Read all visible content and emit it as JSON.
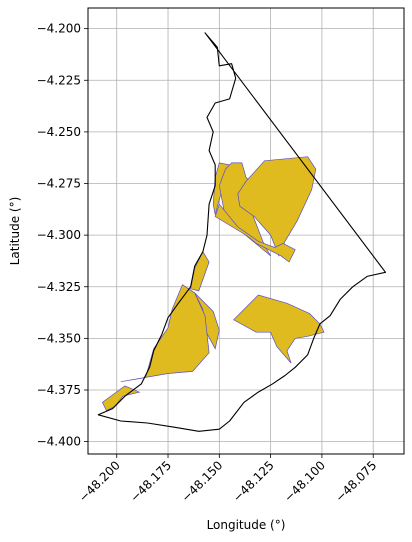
{
  "chart_data": {
    "type": "map",
    "xlabel": "Longitude (°)",
    "ylabel": "Latitude (°)",
    "xlim": [
      -48.214,
      -48.06
    ],
    "ylim": [
      -4.406,
      -4.19
    ],
    "grid": true,
    "x_ticks": [
      {
        "value": -48.2,
        "label": "−48.200"
      },
      {
        "value": -48.175,
        "label": "−48.175"
      },
      {
        "value": -48.15,
        "label": "−48.150"
      },
      {
        "value": -48.125,
        "label": "−48.125"
      },
      {
        "value": -48.1,
        "label": "−48.100"
      },
      {
        "value": -48.075,
        "label": "−48.075"
      }
    ],
    "y_ticks": [
      {
        "value": -4.2,
        "label": "−4.200"
      },
      {
        "value": -4.225,
        "label": "−4.225"
      },
      {
        "value": -4.25,
        "label": "−4.250"
      },
      {
        "value": -4.275,
        "label": "−4.275"
      },
      {
        "value": -4.3,
        "label": "−4.300"
      },
      {
        "value": -4.325,
        "label": "−4.325"
      },
      {
        "value": -4.35,
        "label": "−4.350"
      },
      {
        "value": -4.375,
        "label": "−4.375"
      },
      {
        "value": -4.4,
        "label": "−4.400"
      }
    ],
    "colors": {
      "boundary_stroke": "#000000",
      "parcel_fill": "#e0bb1f",
      "parcel_stroke": "#5a4fc4",
      "grid": "#b0b0b0"
    },
    "boundary": [
      [
        -48.157,
        -4.202
      ],
      [
        -48.151,
        -4.209
      ],
      [
        -48.15,
        -4.218
      ],
      [
        -48.144,
        -4.217
      ],
      [
        -48.142,
        -4.224
      ],
      [
        -48.145,
        -4.234
      ],
      [
        -48.152,
        -4.236
      ],
      [
        -48.156,
        -4.243
      ],
      [
        -48.153,
        -4.25
      ],
      [
        -48.155,
        -4.259
      ],
      [
        -48.152,
        -4.266
      ],
      [
        -48.152,
        -4.276
      ],
      [
        -48.155,
        -4.285
      ],
      [
        -48.156,
        -4.3
      ],
      [
        -48.158,
        -4.308
      ],
      [
        -48.162,
        -4.315
      ],
      [
        -48.164,
        -4.325
      ],
      [
        -48.17,
        -4.333
      ],
      [
        -48.175,
        -4.34
      ],
      [
        -48.178,
        -4.348
      ],
      [
        -48.182,
        -4.356
      ],
      [
        -48.184,
        -4.364
      ],
      [
        -48.188,
        -4.372
      ],
      [
        -48.196,
        -4.378
      ],
      [
        -48.202,
        -4.384
      ],
      [
        -48.209,
        -4.387
      ],
      [
        -48.198,
        -4.39
      ],
      [
        -48.185,
        -4.391
      ],
      [
        -48.172,
        -4.393
      ],
      [
        -48.16,
        -4.395
      ],
      [
        -48.15,
        -4.394
      ],
      [
        -48.145,
        -4.39
      ],
      [
        -48.138,
        -4.381
      ],
      [
        -48.131,
        -4.376
      ],
      [
        -48.124,
        -4.372
      ],
      [
        -48.118,
        -4.368
      ],
      [
        -48.113,
        -4.364
      ],
      [
        -48.107,
        -4.358
      ],
      [
        -48.104,
        -4.35
      ],
      [
        -48.101,
        -4.343
      ],
      [
        -48.096,
        -4.339
      ],
      [
        -48.091,
        -4.331
      ],
      [
        -48.085,
        -4.325
      ],
      [
        -48.078,
        -4.32
      ],
      [
        -48.069,
        -4.318
      ],
      [
        -48.157,
        -4.202
      ]
    ],
    "parcels": [
      [
        [
          -48.15,
          -4.265
        ],
        [
          -48.145,
          -4.266
        ],
        [
          -48.147,
          -4.272
        ],
        [
          -48.152,
          -4.29
        ],
        [
          -48.153,
          -4.285
        ],
        [
          -48.152,
          -4.272
        ]
      ],
      [
        [
          -48.144,
          -4.265
        ],
        [
          -48.139,
          -4.265
        ],
        [
          -48.137,
          -4.272
        ],
        [
          -48.131,
          -4.278
        ],
        [
          -48.135,
          -4.287
        ],
        [
          -48.128,
          -4.305
        ],
        [
          -48.125,
          -4.31
        ],
        [
          -48.147,
          -4.292
        ],
        [
          -48.15,
          -4.276
        ],
        [
          -48.147,
          -4.268
        ]
      ],
      [
        [
          -48.137,
          -4.274
        ],
        [
          -48.128,
          -4.264
        ],
        [
          -48.107,
          -4.262
        ],
        [
          -48.103,
          -4.268
        ],
        [
          -48.105,
          -4.278
        ],
        [
          -48.112,
          -4.293
        ],
        [
          -48.118,
          -4.303
        ],
        [
          -48.121,
          -4.31
        ],
        [
          -48.125,
          -4.3
        ],
        [
          -48.133,
          -4.291
        ],
        [
          -48.14,
          -4.286
        ],
        [
          -48.141,
          -4.28
        ]
      ],
      [
        [
          -48.15,
          -4.285
        ],
        [
          -48.152,
          -4.291
        ],
        [
          -48.137,
          -4.3
        ],
        [
          -48.132,
          -4.304
        ],
        [
          -48.12,
          -4.31
        ],
        [
          -48.116,
          -4.313
        ],
        [
          -48.113,
          -4.307
        ],
        [
          -48.119,
          -4.304
        ],
        [
          -48.123,
          -4.306
        ],
        [
          -48.131,
          -4.303
        ],
        [
          -48.141,
          -4.296
        ]
      ],
      [
        [
          -48.155,
          -4.313
        ],
        [
          -48.158,
          -4.308
        ],
        [
          -48.162,
          -4.316
        ],
        [
          -48.164,
          -4.326
        ],
        [
          -48.16,
          -4.327
        ]
      ],
      [
        [
          -48.162,
          -4.328
        ],
        [
          -48.158,
          -4.336
        ],
        [
          -48.158,
          -4.344
        ],
        [
          -48.152,
          -4.355
        ],
        [
          -48.15,
          -4.346
        ],
        [
          -48.153,
          -4.337
        ]
      ],
      [
        [
          -48.168,
          -4.324
        ],
        [
          -48.173,
          -4.336
        ],
        [
          -48.175,
          -4.345
        ],
        [
          -48.182,
          -4.355
        ],
        [
          -48.186,
          -4.369
        ],
        [
          -48.198,
          -4.371
        ],
        [
          -48.175,
          -4.367
        ],
        [
          -48.163,
          -4.366
        ],
        [
          -48.155,
          -4.357
        ],
        [
          -48.157,
          -4.339
        ],
        [
          -48.162,
          -4.328
        ]
      ],
      [
        [
          -48.197,
          -4.378
        ],
        [
          -48.201,
          -4.383
        ],
        [
          -48.205,
          -4.385
        ],
        [
          -48.207,
          -4.381
        ],
        [
          -48.196,
          -4.373
        ],
        [
          -48.189,
          -4.376
        ]
      ],
      [
        [
          -48.143,
          -4.341
        ],
        [
          -48.131,
          -4.329
        ],
        [
          -48.117,
          -4.333
        ],
        [
          -48.106,
          -4.338
        ],
        [
          -48.101,
          -4.343
        ],
        [
          -48.099,
          -4.347
        ],
        [
          -48.107,
          -4.349
        ],
        [
          -48.113,
          -4.35
        ],
        [
          -48.117,
          -4.356
        ],
        [
          -48.115,
          -4.362
        ],
        [
          -48.122,
          -4.354
        ],
        [
          -48.125,
          -4.347
        ],
        [
          -48.132,
          -4.347
        ]
      ]
    ]
  }
}
